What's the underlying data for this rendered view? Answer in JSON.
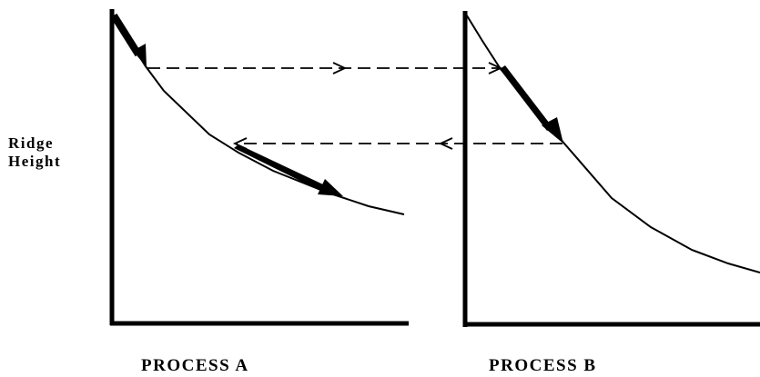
{
  "y_axis_label": {
    "line1": "Ridge",
    "line2": "Height"
  },
  "panels": [
    {
      "id": "a",
      "label": "PROCESS A"
    },
    {
      "id": "b",
      "label": "PROCESS B"
    }
  ],
  "colors": {
    "ink": "#000000",
    "background": "#ffffff"
  }
}
